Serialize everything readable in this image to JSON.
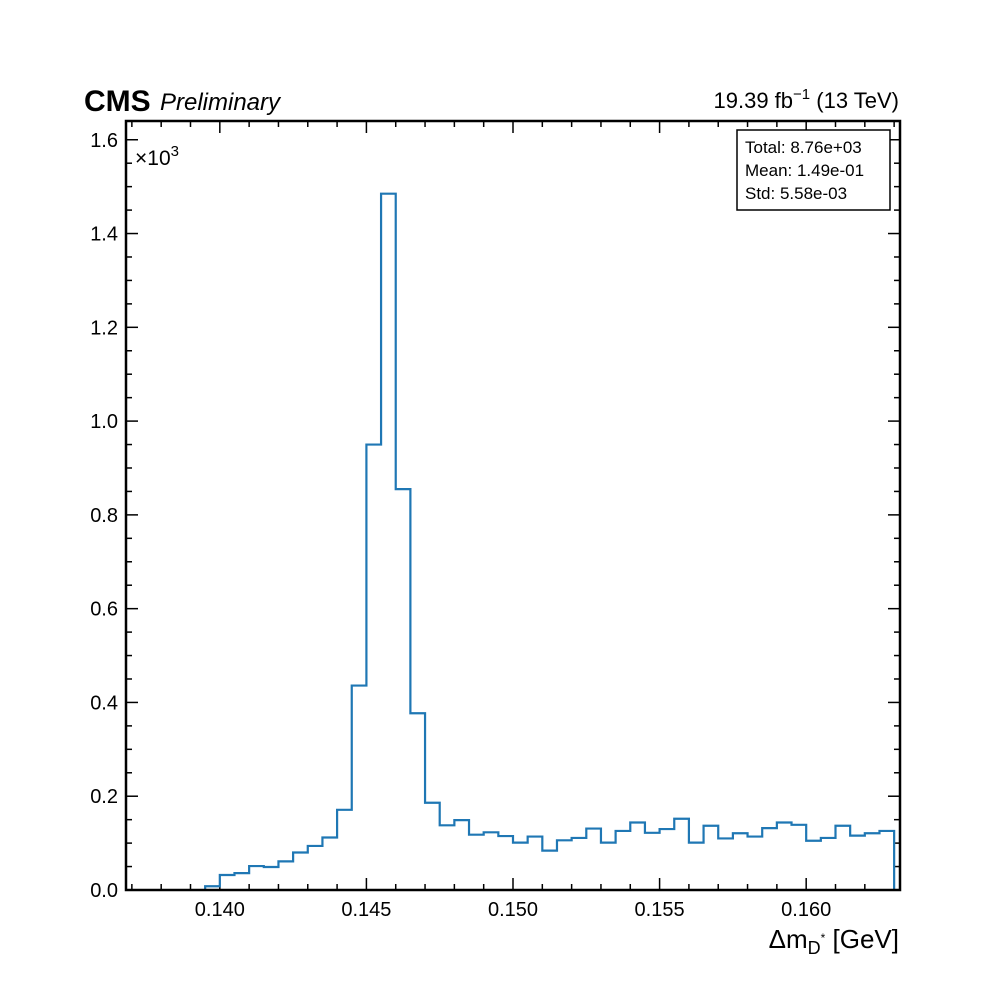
{
  "chart_data": {
    "type": "histogram",
    "title": "",
    "experiment_label": "CMS",
    "status_label": "Preliminary",
    "lumi_text": {
      "value": "19.39 fb",
      "exponent": "−1",
      "energy": " (13 TeV)"
    },
    "xlabel": {
      "prefix": "Δm",
      "subscript": "D",
      "superscript": "*",
      "unit": " [GeV]"
    },
    "ylabel": "",
    "y_multiplier": {
      "base": "×10",
      "exponent": "3"
    },
    "xlim": [
      0.1368,
      0.1632
    ],
    "ylim": [
      0,
      1.64
    ],
    "x_ticks": [
      0.14,
      0.145,
      0.15,
      0.155,
      0.16
    ],
    "x_tick_labels": [
      "0.140",
      "0.145",
      "0.150",
      "0.155",
      "0.160"
    ],
    "y_ticks": [
      0.0,
      0.2,
      0.4,
      0.6,
      0.8,
      1.0,
      1.2,
      1.4,
      1.6
    ],
    "y_tick_labels": [
      "0.0",
      "0.2",
      "0.4",
      "0.6",
      "0.8",
      "1.0",
      "1.2",
      "1.4",
      "1.6"
    ],
    "bin_start": 0.1395,
    "bin_width": 0.0005,
    "values": [
      0.008,
      0.032,
      0.036,
      0.051,
      0.049,
      0.061,
      0.08,
      0.094,
      0.112,
      0.171,
      0.436,
      0.95,
      1.485,
      0.855,
      0.377,
      0.186,
      0.138,
      0.149,
      0.118,
      0.123,
      0.115,
      0.101,
      0.114,
      0.084,
      0.106,
      0.111,
      0.131,
      0.101,
      0.126,
      0.144,
      0.122,
      0.13,
      0.152,
      0.101,
      0.137,
      0.11,
      0.121,
      0.114,
      0.132,
      0.144,
      0.139,
      0.105,
      0.111,
      0.137,
      0.116,
      0.121,
      0.126
    ],
    "line_color": "#1f77b4",
    "legend_placement": "top-right",
    "stats": {
      "total": "Total: 8.76e+03",
      "mean": "Mean: 1.49e-01",
      "std": "Std: 5.58e-03"
    }
  }
}
